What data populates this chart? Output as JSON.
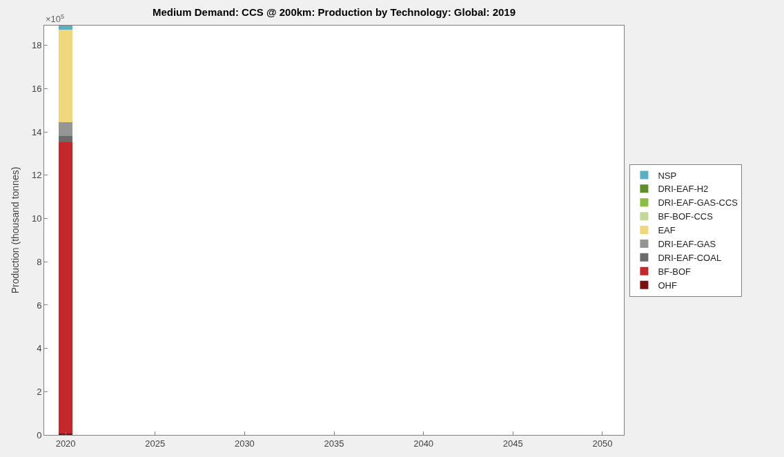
{
  "chart_data": {
    "type": "bar",
    "title": "Medium Demand: CCS @ 200km: Production by Technology: Global: 2019",
    "ylabel": "Production (thousand tonnes)",
    "stacked": true,
    "x": [
      2020
    ],
    "series": [
      {
        "name": "OHF",
        "color": "#7a1010",
        "values": [
          0.05
        ]
      },
      {
        "name": "BF-BOF",
        "color": "#c4282a",
        "values": [
          13.48
        ]
      },
      {
        "name": "DRI-EAF-COAL",
        "color": "#6b6b6b",
        "values": [
          0.3
        ]
      },
      {
        "name": "DRI-EAF-GAS",
        "color": "#959595",
        "values": [
          0.63
        ]
      },
      {
        "name": "EAF",
        "color": "#f0d77a",
        "values": [
          4.28
        ]
      },
      {
        "name": "BF-BOF-CCS",
        "color": "#c2d89a",
        "values": [
          0
        ]
      },
      {
        "name": "DRI-EAF-GAS-CCS",
        "color": "#8cbd40",
        "values": [
          0
        ]
      },
      {
        "name": "DRI-EAF-H2",
        "color": "#5e8f2a",
        "values": [
          0
        ]
      },
      {
        "name": "NSP",
        "color": "#5aafc0",
        "values": [
          0.18
        ]
      }
    ],
    "xlim": [
      2018.8,
      2051.2
    ],
    "xticks": [
      2020,
      2025,
      2030,
      2035,
      2040,
      2045,
      2050
    ],
    "ylim": [
      0,
      18.92
    ],
    "yticks": [
      0,
      2,
      4,
      6,
      8,
      10,
      12,
      14,
      16,
      18
    ],
    "annotations": [
      "×10$^{5}$"
    ],
    "legend": "right"
  }
}
